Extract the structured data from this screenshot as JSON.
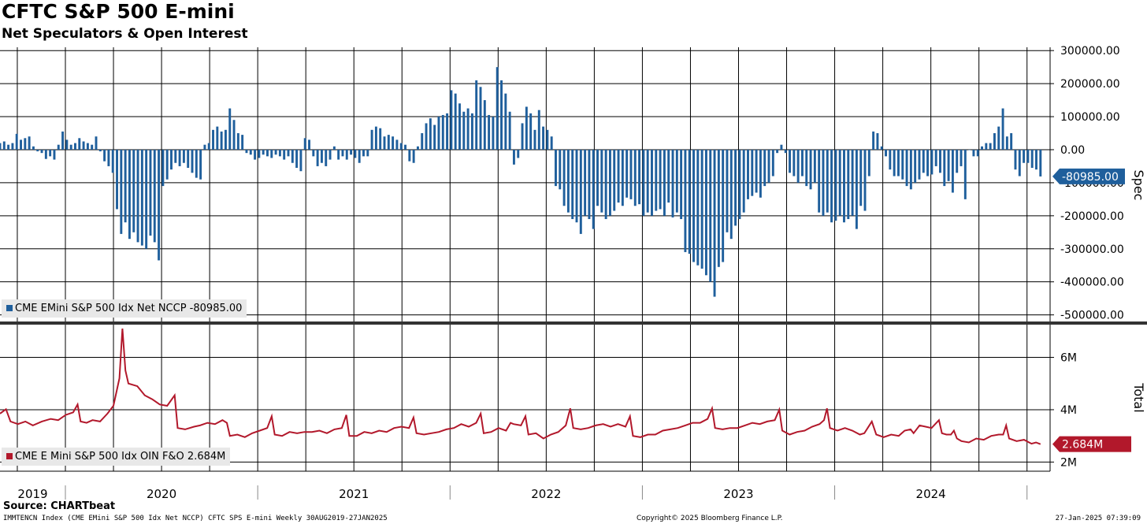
{
  "title": "CFTC S&P 500 E-mini",
  "subtitle": "Net Speculators & Open Interest",
  "source": "Source: CHARTbeat",
  "footer": {
    "left": "IMMTENCN Index (CME EMini S&P 500 Idx Net NCCP) CFTC SPS E-mini  Weekly 30AUG2019-27JAN2025",
    "center": "Copyright© 2025 Bloomberg Finance L.P.",
    "right": "27-Jan-2025 07:39:09"
  },
  "colors": {
    "spec": "#1f5f9c",
    "total": "#b2182b",
    "grid": "#000000"
  },
  "chart_data": [
    {
      "type": "bar",
      "axis_label": "Spec",
      "legend": "CME EMini S&P 500 Idx Net NCCP -80985.00",
      "last_value_label": "-80985.00",
      "ylim": [
        -520000,
        310000
      ],
      "yticks": [
        "300000.00",
        "200000.00",
        "100000.00",
        "0.00",
        "-100000.00",
        "-200000.00",
        "-300000.00",
        "-400000.00",
        "-500000.00"
      ],
      "ytick_values": [
        300000,
        200000,
        100000,
        0,
        -100000,
        -200000,
        -300000,
        -400000,
        -500000
      ],
      "x_start": 2019.66,
      "x_end": 2025.07,
      "step_years": 0.01923,
      "values": [
        20000,
        25000,
        15000,
        20000,
        48000,
        30000,
        35000,
        40000,
        10000,
        -5000,
        -10000,
        -28000,
        -20000,
        -30000,
        15000,
        55000,
        30000,
        15000,
        20000,
        35000,
        25000,
        20000,
        15000,
        40000,
        -5000,
        -35000,
        -50000,
        -70000,
        -180000,
        -255000,
        -220000,
        -270000,
        -250000,
        -280000,
        -290000,
        -300000,
        -260000,
        -280000,
        -335000,
        -110000,
        -90000,
        -60000,
        -40000,
        -50000,
        -40000,
        -55000,
        -70000,
        -85000,
        -90000,
        15000,
        20000,
        60000,
        70000,
        55000,
        60000,
        125000,
        90000,
        50000,
        45000,
        -10000,
        -15000,
        -30000,
        -25000,
        -15000,
        -20000,
        -25000,
        -15000,
        -20000,
        -30000,
        -20000,
        -40000,
        -55000,
        -65000,
        35000,
        30000,
        -20000,
        -50000,
        -40000,
        -50000,
        -30000,
        10000,
        -30000,
        -20000,
        -30000,
        -15000,
        -25000,
        -40000,
        -20000,
        -20000,
        60000,
        70000,
        65000,
        40000,
        45000,
        40000,
        30000,
        20000,
        15000,
        -35000,
        -40000,
        10000,
        50000,
        80000,
        95000,
        75000,
        100000,
        105000,
        110000,
        180000,
        170000,
        140000,
        115000,
        125000,
        110000,
        210000,
        190000,
        150000,
        105000,
        100000,
        250000,
        210000,
        170000,
        115000,
        -45000,
        -25000,
        80000,
        130000,
        110000,
        60000,
        120000,
        70000,
        60000,
        40000,
        -110000,
        -120000,
        -170000,
        -190000,
        -210000,
        -220000,
        -255000,
        -200000,
        -210000,
        -240000,
        -170000,
        -190000,
        -210000,
        -200000,
        -185000,
        -160000,
        -170000,
        -145000,
        -150000,
        -170000,
        -165000,
        -200000,
        -190000,
        -200000,
        -185000,
        -180000,
        -200000,
        -160000,
        -205000,
        -190000,
        -210000,
        -310000,
        -315000,
        -340000,
        -350000,
        -360000,
        -380000,
        -400000,
        -445000,
        -355000,
        -340000,
        -250000,
        -270000,
        -230000,
        -210000,
        -190000,
        -150000,
        -140000,
        -130000,
        -145000,
        -110000,
        -100000,
        -80000,
        -10000,
        15000,
        -10000,
        -70000,
        -80000,
        -100000,
        -80000,
        -110000,
        -120000,
        -100000,
        -190000,
        -200000,
        -190000,
        -220000,
        -215000,
        -200000,
        -220000,
        -210000,
        -200000,
        -240000,
        -170000,
        -185000,
        -80000,
        55000,
        50000,
        10000,
        -20000,
        -60000,
        -80000,
        -80000,
        -90000,
        -110000,
        -120000,
        -100000,
        -90000,
        -70000,
        -80000,
        -75000,
        -50000,
        -70000,
        -110000,
        -95000,
        -130000,
        -70000,
        -50000,
        -150000,
        0,
        -20000,
        -20000,
        10000,
        20000,
        20000,
        50000,
        70000,
        125000,
        40000,
        50000,
        -60000,
        -80000,
        -40000,
        -40000,
        -55000,
        -60000,
        -80985
      ]
    },
    {
      "type": "line",
      "axis_label": "Total",
      "legend": "CME E Mini S&P 500 Idx OIN F&O 2.684M",
      "last_value_label": "2.684M",
      "ylim": [
        1.65,
        7.25
      ],
      "yticks": [
        "6M",
        "4M",
        "2M"
      ],
      "ytick_values": [
        6,
        4,
        2
      ],
      "x_start": 2019.66,
      "x_end": 2025.07,
      "points": [
        [
          2019.66,
          3.85
        ],
        [
          2019.7,
          4.02
        ],
        [
          2019.73,
          3.55
        ],
        [
          2019.78,
          3.45
        ],
        [
          2019.83,
          3.55
        ],
        [
          2019.88,
          3.4
        ],
        [
          2019.94,
          3.55
        ],
        [
          2020.0,
          3.65
        ],
        [
          2020.05,
          3.6
        ],
        [
          2020.1,
          3.8
        ],
        [
          2020.15,
          3.9
        ],
        [
          2020.18,
          4.2
        ],
        [
          2020.2,
          3.55
        ],
        [
          2020.24,
          3.5
        ],
        [
          2020.28,
          3.6
        ],
        [
          2020.33,
          3.55
        ],
        [
          2020.38,
          3.85
        ],
        [
          2020.42,
          4.15
        ],
        [
          2020.46,
          5.2
        ],
        [
          2020.48,
          7.1
        ],
        [
          2020.5,
          5.5
        ],
        [
          2020.52,
          5.0
        ],
        [
          2020.58,
          4.9
        ],
        [
          2020.63,
          4.55
        ],
        [
          2020.68,
          4.4
        ],
        [
          2020.73,
          4.2
        ],
        [
          2020.78,
          4.15
        ],
        [
          2020.83,
          4.55
        ],
        [
          2020.85,
          3.3
        ],
        [
          2020.9,
          3.25
        ],
        [
          2020.96,
          3.35
        ],
        [
          2021.0,
          3.4
        ],
        [
          2021.05,
          3.5
        ],
        [
          2021.1,
          3.45
        ],
        [
          2021.15,
          3.6
        ],
        [
          2021.18,
          3.5
        ],
        [
          2021.2,
          3.0
        ],
        [
          2021.25,
          3.05
        ],
        [
          2021.3,
          2.95
        ],
        [
          2021.35,
          3.1
        ],
        [
          2021.4,
          3.2
        ],
        [
          2021.45,
          3.3
        ],
        [
          2021.48,
          3.75
        ],
        [
          2021.5,
          3.05
        ],
        [
          2021.55,
          3.0
        ],
        [
          2021.6,
          3.15
        ],
        [
          2021.65,
          3.1
        ],
        [
          2021.7,
          3.15
        ],
        [
          2021.75,
          3.15
        ],
        [
          2021.8,
          3.2
        ],
        [
          2021.85,
          3.1
        ],
        [
          2021.9,
          3.25
        ],
        [
          2021.95,
          3.3
        ],
        [
          2021.98,
          3.8
        ],
        [
          2022.0,
          3.0
        ],
        [
          2022.05,
          3.0
        ],
        [
          2022.1,
          3.15
        ],
        [
          2022.15,
          3.1
        ],
        [
          2022.2,
          3.2
        ],
        [
          2022.25,
          3.15
        ],
        [
          2022.3,
          3.3
        ],
        [
          2022.35,
          3.35
        ],
        [
          2022.4,
          3.3
        ],
        [
          2022.43,
          3.7
        ],
        [
          2022.45,
          3.1
        ],
        [
          2022.5,
          3.05
        ],
        [
          2022.55,
          3.1
        ],
        [
          2022.6,
          3.15
        ],
        [
          2022.65,
          3.25
        ],
        [
          2022.7,
          3.3
        ],
        [
          2022.75,
          3.45
        ],
        [
          2022.8,
          3.35
        ],
        [
          2022.85,
          3.5
        ],
        [
          2022.88,
          3.85
        ],
        [
          2022.9,
          3.1
        ],
        [
          2022.95,
          3.15
        ],
        [
          2023.0,
          3.3
        ],
        [
          2023.05,
          3.2
        ],
        [
          2023.08,
          3.5
        ],
        [
          2023.1,
          3.45
        ],
        [
          2023.15,
          3.4
        ],
        [
          2023.18,
          3.75
        ],
        [
          2023.2,
          3.05
        ],
        [
          2023.25,
          3.1
        ],
        [
          2023.3,
          2.9
        ],
        [
          2023.35,
          3.05
        ],
        [
          2023.4,
          3.15
        ],
        [
          2023.45,
          3.4
        ],
        [
          2023.48,
          4.05
        ],
        [
          2023.5,
          3.3
        ],
        [
          2023.55,
          3.25
        ],
        [
          2023.6,
          3.3
        ],
        [
          2023.65,
          3.4
        ],
        [
          2023.7,
          3.45
        ],
        [
          2023.75,
          3.35
        ],
        [
          2023.8,
          3.45
        ],
        [
          2023.85,
          3.35
        ],
        [
          2023.88,
          3.75
        ],
        [
          2023.9,
          3.0
        ],
        [
          2023.95,
          2.95
        ],
        [
          2024.0,
          3.05
        ],
        [
          2024.05,
          3.05
        ],
        [
          2024.1,
          3.2
        ],
        [
          2024.15,
          3.25
        ],
        [
          2024.2,
          3.3
        ],
        [
          2024.25,
          3.4
        ],
        [
          2024.3,
          3.5
        ],
        [
          2024.35,
          3.5
        ],
        [
          2024.4,
          3.65
        ],
        [
          2024.43,
          4.05
        ],
        [
          2024.45,
          3.3
        ],
        [
          2024.5,
          3.25
        ],
        [
          2024.55,
          3.3
        ],
        [
          2024.6,
          3.3
        ],
        [
          2024.65,
          3.4
        ],
        [
          2024.7,
          3.5
        ],
        [
          2024.75,
          3.45
        ],
        [
          2024.8,
          3.55
        ],
        [
          2024.85,
          3.6
        ],
        [
          2024.88,
          4.0
        ],
        [
          2024.9,
          3.2
        ],
        [
          2024.95,
          3.05
        ],
        [
          2025.0,
          3.15
        ],
        [
          2025.05,
          3.2
        ],
        [
          2025.1,
          3.35
        ],
        [
          2025.15,
          3.45
        ],
        [
          2025.18,
          3.6
        ],
        [
          2025.2,
          4.05
        ],
        [
          2025.22,
          3.3
        ],
        [
          2025.27,
          3.2
        ],
        [
          2025.32,
          3.3
        ],
        [
          2025.37,
          3.2
        ],
        [
          2025.42,
          3.05
        ],
        [
          2025.45,
          3.1
        ],
        [
          2025.5,
          3.55
        ],
        [
          2025.53,
          3.05
        ],
        [
          2025.58,
          2.95
        ],
        [
          2025.63,
          3.05
        ],
        [
          2025.68,
          3.0
        ],
        [
          2025.72,
          3.2
        ],
        [
          2025.76,
          3.25
        ],
        [
          2025.78,
          3.1
        ],
        [
          2025.82,
          3.4
        ],
        [
          2025.86,
          3.35
        ],
        [
          2025.9,
          3.3
        ],
        [
          2025.95,
          3.6
        ],
        [
          2025.97,
          3.1
        ],
        [
          2026.0,
          3.05
        ],
        [
          2026.03,
          3.05
        ],
        [
          2026.05,
          3.2
        ],
        [
          2026.07,
          2.9
        ],
        [
          2026.1,
          2.8
        ],
        [
          2026.15,
          2.75
        ],
        [
          2026.2,
          2.9
        ],
        [
          2026.25,
          2.85
        ],
        [
          2026.3,
          3.0
        ],
        [
          2026.35,
          3.05
        ],
        [
          2026.38,
          3.05
        ],
        [
          2026.4,
          3.4
        ],
        [
          2026.42,
          2.9
        ],
        [
          2026.47,
          2.8
        ],
        [
          2026.52,
          2.85
        ],
        [
          2026.57,
          2.7
        ],
        [
          2026.6,
          2.75
        ],
        [
          2026.63,
          2.684
        ]
      ]
    }
  ],
  "x_axis": {
    "labels": [
      "2019",
      "2020",
      "2021",
      "2022",
      "2023",
      "2024"
    ]
  }
}
